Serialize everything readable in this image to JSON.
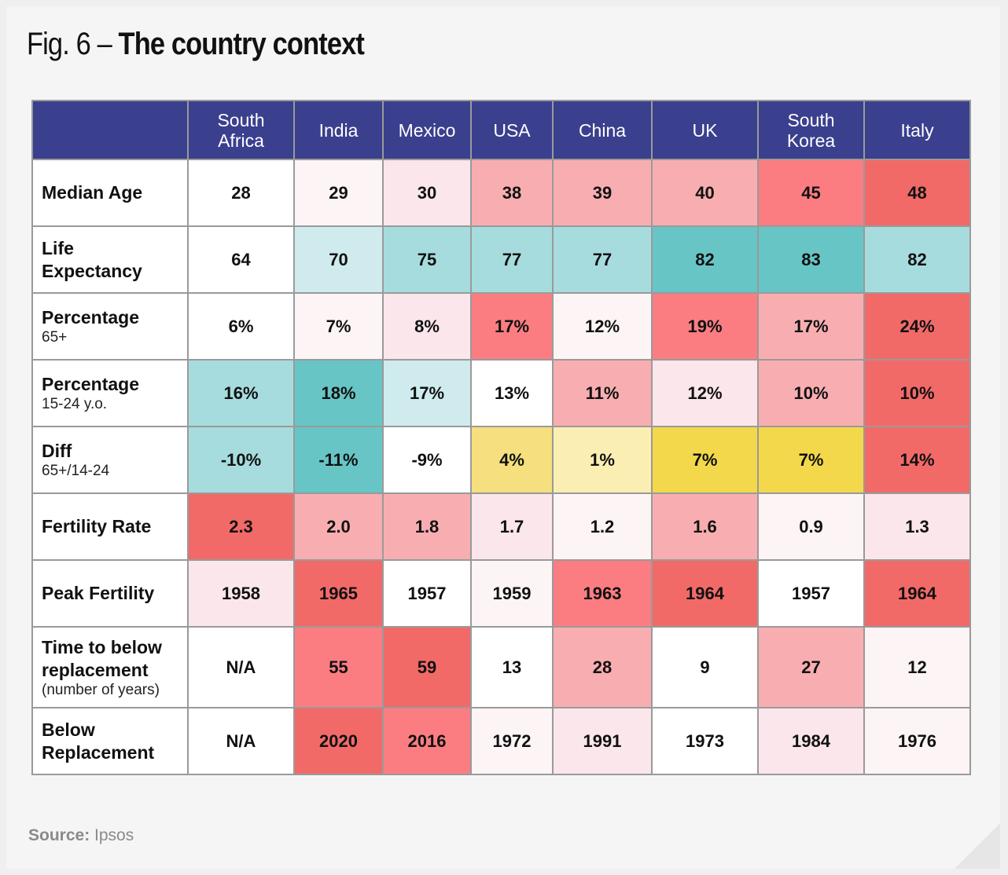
{
  "title": {
    "prefix": "Fig. 6 – ",
    "bold": "The country context"
  },
  "source": {
    "label": "Source:",
    "value": "Ipsos"
  },
  "colors": {
    "header_bg": "#3a3f8e",
    "white": "#ffffff",
    "pink_lightest": "#fcf4f5",
    "pink_light": "#fae6eb",
    "pink_mid": "#f8aeb1",
    "pink_strong": "#fb7d82",
    "red": "#f26a68",
    "teal_light": "#cfebed",
    "teal_mid": "#a7dcde",
    "teal_strong": "#68c5c6",
    "yellow_light": "#fbeeb2",
    "yellow_mid": "#f6df7e",
    "yellow_strong": "#f3d84b"
  },
  "chart_data": {
    "type": "table",
    "title": "Fig. 6 – The country context",
    "columns": [
      "South\nAfrica",
      "India",
      "Mexico",
      "USA",
      "China",
      "UK",
      "South\nKorea",
      "Italy"
    ],
    "rows": [
      {
        "label": "Median Age",
        "sublabel": "",
        "values": [
          "28",
          "29",
          "30",
          "38",
          "39",
          "40",
          "45",
          "48"
        ],
        "fills": [
          "white",
          "pink_lightest",
          "pink_light",
          "pink_mid",
          "pink_mid",
          "pink_mid",
          "pink_strong",
          "red"
        ]
      },
      {
        "label": "Life\nExpectancy",
        "sublabel": "",
        "values": [
          "64",
          "70",
          "75",
          "77",
          "77",
          "82",
          "83",
          "82"
        ],
        "fills": [
          "white",
          "teal_light",
          "teal_mid",
          "teal_mid",
          "teal_mid",
          "teal_strong",
          "teal_strong",
          "teal_mid"
        ]
      },
      {
        "label": "Percentage",
        "sublabel": "65+",
        "values": [
          "6%",
          "7%",
          "8%",
          "17%",
          "12%",
          "19%",
          "17%",
          "24%"
        ],
        "fills": [
          "white",
          "pink_lightest",
          "pink_light",
          "pink_strong",
          "pink_lightest",
          "pink_strong",
          "pink_mid",
          "red"
        ]
      },
      {
        "label": "Percentage",
        "sublabel": "15-24 y.o.",
        "values": [
          "16%",
          "18%",
          "17%",
          "13%",
          "11%",
          "12%",
          "10%",
          "10%"
        ],
        "fills": [
          "teal_mid",
          "teal_strong",
          "teal_light",
          "white",
          "pink_mid",
          "pink_light",
          "pink_mid",
          "red"
        ]
      },
      {
        "label": "Diff",
        "sublabel": "65+/14-24",
        "values": [
          "-10%",
          "-11%",
          "-9%",
          "4%",
          "1%",
          "7%",
          "7%",
          "14%"
        ],
        "fills": [
          "teal_mid",
          "teal_strong",
          "white",
          "yellow_mid",
          "yellow_light",
          "yellow_strong",
          "yellow_strong",
          "red"
        ]
      },
      {
        "label": "Fertility Rate",
        "sublabel": "",
        "values": [
          "2.3",
          "2.0",
          "1.8",
          "1.7",
          "1.2",
          "1.6",
          "0.9",
          "1.3"
        ],
        "fills": [
          "red",
          "pink_mid",
          "pink_mid",
          "pink_light",
          "pink_lightest",
          "pink_mid",
          "pink_lightest",
          "pink_light"
        ]
      },
      {
        "label": "Peak Fertility",
        "sublabel": "",
        "values": [
          "1958",
          "1965",
          "1957",
          "1959",
          "1963",
          "1964",
          "1957",
          "1964"
        ],
        "fills": [
          "pink_light",
          "red",
          "white",
          "pink_lightest",
          "pink_strong",
          "red",
          "white",
          "red"
        ]
      },
      {
        "label": "Time to below\nreplacement",
        "sublabel": "(number of years)",
        "values": [
          "N/A",
          "55",
          "59",
          "13",
          "28",
          "9",
          "27",
          "12"
        ],
        "fills": [
          "white",
          "pink_strong",
          "red",
          "white",
          "pink_mid",
          "white",
          "pink_mid",
          "pink_lightest"
        ],
        "tall": true
      },
      {
        "label": "Below\nReplacement",
        "sublabel": "",
        "values": [
          "N/A",
          "2020",
          "2016",
          "1972",
          "1991",
          "1973",
          "1984",
          "1976"
        ],
        "fills": [
          "white",
          "red",
          "pink_strong",
          "pink_lightest",
          "pink_light",
          "white",
          "pink_light",
          "pink_lightest"
        ]
      }
    ]
  }
}
